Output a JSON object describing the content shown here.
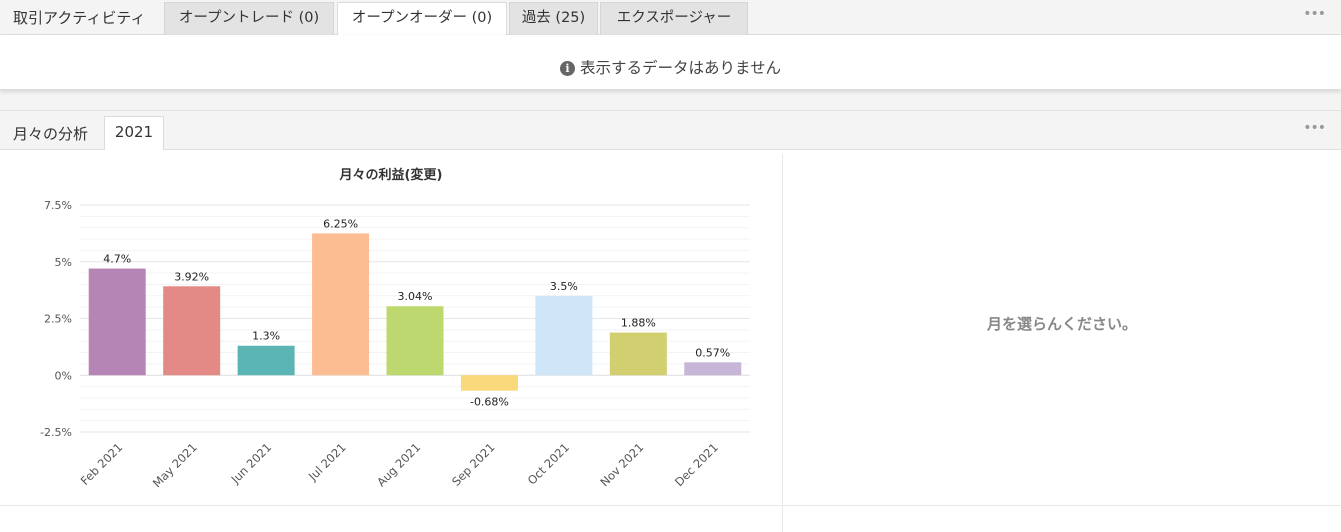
{
  "top_tabs": {
    "title": "取引アクティビティ",
    "tabs": [
      {
        "label": "オープントレード (0)"
      },
      {
        "label": "オープンオーダー (0)"
      },
      {
        "label": "過去 (25)"
      },
      {
        "label": "エクスポージャー"
      }
    ],
    "active_index": 1,
    "more": "•••"
  },
  "orders_panel": {
    "info_icon": "i",
    "empty_message": "表示するデータはありません"
  },
  "monthly": {
    "title": "月々の分析",
    "year_tab": "2021",
    "more": "•••",
    "select_prompt": "月を選らんください。"
  },
  "chart_data": {
    "type": "bar",
    "title": "月々の利益(変更)",
    "categories": [
      "Feb 2021",
      "May 2021",
      "Jun 2021",
      "Jul 2021",
      "Aug 2021",
      "Sep 2021",
      "Oct 2021",
      "Nov 2021",
      "Dec 2021"
    ],
    "values": [
      4.7,
      3.92,
      1.3,
      6.25,
      3.04,
      -0.68,
      3.5,
      1.88,
      0.57
    ],
    "data_labels": [
      "4.7%",
      "3.92%",
      "1.3%",
      "6.25%",
      "3.04%",
      "-0.68%",
      "3.5%",
      "1.88%",
      "0.57%"
    ],
    "colors": [
      "#b586b5",
      "#e38a86",
      "#5bb5b5",
      "#fdbd93",
      "#bdd86e",
      "#fad97b",
      "#cfe5f8",
      "#d1cf6f",
      "#c8b6d9"
    ],
    "yticks": [
      7.5,
      5,
      2.5,
      0,
      -2.5
    ],
    "ytick_labels": [
      "7.5%",
      "5%",
      "2.5%",
      "0%",
      "-2.5%"
    ],
    "ylim": [
      -2.5,
      7.5
    ],
    "grid": true
  }
}
